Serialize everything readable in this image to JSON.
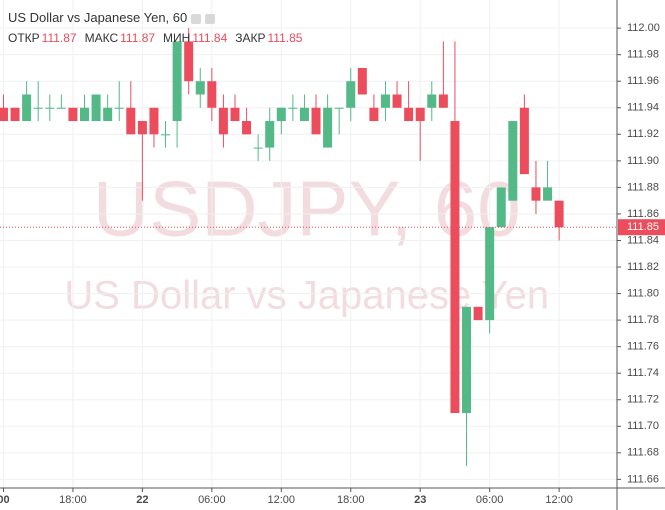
{
  "chart_data": {
    "type": "candlestick",
    "title": "US Dollar vs Japanese Yen, 60",
    "watermark": [
      "USDJPY, 60",
      "US Dollar vs Japanese Yen"
    ],
    "ohlc_header": [
      {
        "label": "ОТКР",
        "value": 111.87
      },
      {
        "label": "МАКС",
        "value": 111.87
      },
      {
        "label": "МИН",
        "value": 111.84
      },
      {
        "label": "ЗАКР",
        "value": 111.85
      }
    ],
    "last_price": 111.85,
    "up_color": "#53b987",
    "down_color": "#eb4d5c",
    "x": [
      -12,
      -11,
      -10,
      -9,
      -8,
      -7,
      -6,
      -5,
      -4,
      -3,
      -2,
      -1,
      0,
      1,
      2,
      3,
      4,
      5,
      6,
      7,
      8,
      9,
      10,
      11,
      12,
      13,
      14,
      15,
      16,
      17,
      18,
      19,
      20,
      21,
      22,
      23,
      24,
      25,
      26,
      27,
      28,
      29,
      30,
      31,
      32,
      33,
      34,
      35,
      36
    ],
    "open": [
      111.94,
      111.94,
      111.93,
      111.94,
      111.94,
      111.94,
      111.94,
      111.93,
      111.93,
      111.93,
      111.94,
      111.94,
      111.93,
      111.94,
      111.92,
      111.93,
      111.99,
      111.95,
      111.96,
      111.94,
      111.94,
      111.93,
      111.91,
      111.91,
      111.93,
      111.94,
      111.93,
      111.94,
      111.91,
      111.94,
      111.94,
      111.97,
      111.94,
      111.94,
      111.95,
      111.94,
      111.94,
      111.94,
      111.95,
      111.93,
      111.71,
      111.79,
      111.78,
      111.85,
      111.87,
      111.94,
      111.88,
      111.87,
      111.87
    ],
    "high": [
      111.95,
      111.94,
      111.96,
      111.96,
      111.95,
      111.95,
      111.94,
      111.95,
      111.95,
      111.95,
      111.96,
      111.96,
      111.93,
      111.94,
      111.93,
      111.99,
      112.0,
      111.97,
      111.97,
      111.95,
      111.95,
      111.94,
      111.92,
      111.94,
      111.94,
      111.95,
      111.95,
      111.95,
      111.95,
      111.94,
      111.97,
      111.97,
      111.95,
      111.96,
      111.96,
      111.96,
      111.94,
      111.96,
      111.99,
      111.99,
      111.79,
      111.79,
      111.85,
      111.88,
      111.93,
      111.95,
      111.9,
      111.9,
      111.87
    ],
    "low": [
      111.93,
      111.93,
      111.93,
      111.93,
      111.93,
      111.94,
      111.93,
      111.93,
      111.93,
      111.93,
      111.93,
      111.92,
      111.87,
      111.91,
      111.91,
      111.91,
      111.95,
      111.94,
      111.93,
      111.91,
      111.93,
      111.92,
      111.9,
      111.9,
      111.92,
      111.93,
      111.93,
      111.92,
      111.91,
      111.92,
      111.93,
      111.95,
      111.93,
      111.93,
      111.94,
      111.93,
      111.9,
      111.93,
      111.94,
      111.71,
      111.67,
      111.78,
      111.77,
      111.85,
      111.87,
      111.89,
      111.86,
      111.87,
      111.84
    ],
    "close": [
      111.93,
      111.93,
      111.95,
      111.94,
      111.94,
      111.94,
      111.93,
      111.94,
      111.95,
      111.94,
      111.94,
      111.92,
      111.92,
      111.92,
      111.92,
      111.99,
      111.96,
      111.96,
      111.94,
      111.92,
      111.93,
      111.92,
      111.91,
      111.93,
      111.94,
      111.94,
      111.94,
      111.92,
      111.94,
      111.94,
      111.96,
      111.95,
      111.93,
      111.95,
      111.94,
      111.93,
      111.93,
      111.95,
      111.94,
      111.71,
      111.79,
      111.78,
      111.85,
      111.88,
      111.93,
      111.89,
      111.87,
      111.88,
      111.85
    ],
    "xlim": [
      -12.3,
      41
    ],
    "xticks": [
      {
        "value": -12,
        "label": "00"
      },
      {
        "value": -6,
        "label": "18:00"
      },
      {
        "value": 0,
        "label": "22"
      },
      {
        "value": 6,
        "label": "06:00"
      },
      {
        "value": 12,
        "label": "12:00"
      },
      {
        "value": 18,
        "label": "18:00"
      },
      {
        "value": 24,
        "label": "23"
      },
      {
        "value": 30,
        "label": "06:00"
      },
      {
        "value": 36,
        "label": "12:00"
      }
    ],
    "ylim": [
      111.6535,
      112.0212
    ],
    "yticks": [
      {
        "value": 112.0,
        "label": "112.00"
      },
      111.98,
      111.96,
      111.94,
      111.92,
      {
        "value": 111.9,
        "label": "111.90"
      },
      111.88,
      111.86,
      111.84,
      111.82,
      {
        "value": 111.8,
        "label": "111.80"
      },
      111.78,
      111.76,
      111.74,
      111.72,
      {
        "value": 111.7,
        "label": "111.70"
      },
      111.68,
      111.66
    ],
    "grid": true
  }
}
